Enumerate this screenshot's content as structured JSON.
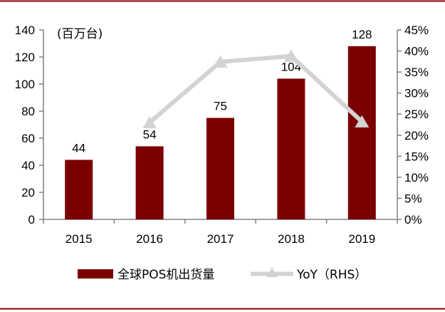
{
  "chart_data": {
    "type": "bar",
    "unit_label": "(百万台)",
    "categories": [
      "2015",
      "2016",
      "2017",
      "2018",
      "2019"
    ],
    "series": [
      {
        "name": "全球POS机出货量",
        "type": "bar",
        "axis": "left",
        "values": [
          44,
          54,
          75,
          104,
          128
        ],
        "data_labels": [
          "44",
          "54",
          "75",
          "104",
          "128"
        ]
      },
      {
        "name": "YoY（RHS）",
        "type": "line",
        "axis": "right",
        "values": [
          null,
          23.0,
          37.4,
          38.8,
          23.2
        ]
      }
    ],
    "y_left": {
      "min": 0,
      "max": 140,
      "ticks": [
        "0",
        "20",
        "40",
        "60",
        "80",
        "100",
        "120",
        "140"
      ]
    },
    "y_right": {
      "min": 0,
      "max": 45,
      "ticks": [
        "0%",
        "5%",
        "10%",
        "15%",
        "20%",
        "25%",
        "30%",
        "35%",
        "40%",
        "45%"
      ]
    },
    "legend_position": "bottom",
    "grid": false,
    "colors": {
      "bar": "#7b0000",
      "line": "#d3d3d3",
      "rule": "#8b0000",
      "axis": "#808080"
    }
  }
}
